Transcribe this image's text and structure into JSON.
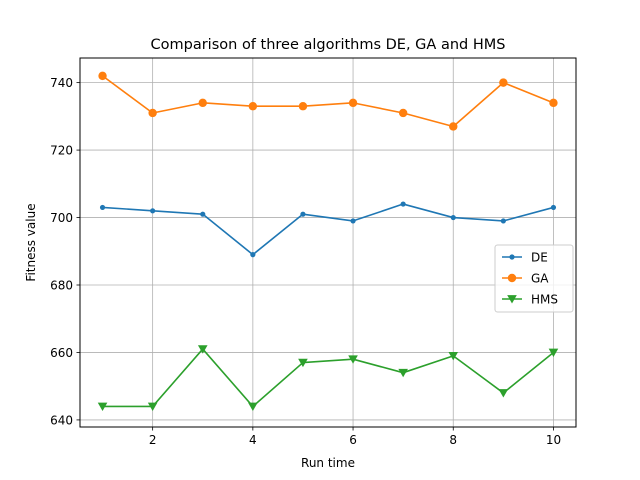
{
  "chart_data": {
    "type": "line",
    "title": "Comparison of three algorithms DE, GA and HMS",
    "xlabel": "Run time",
    "ylabel": "Fitness value",
    "x": [
      1,
      2,
      3,
      4,
      5,
      6,
      7,
      8,
      9,
      10
    ],
    "xlim": [
      0.55,
      10.45
    ],
    "ylim": [
      637.9,
      747.3
    ],
    "x_ticks": [
      2,
      4,
      6,
      8,
      10
    ],
    "y_ticks": [
      640,
      660,
      680,
      700,
      720,
      740
    ],
    "grid": true,
    "legend_position": "center-right",
    "series": [
      {
        "name": "DE",
        "color": "#1f77b4",
        "marker": "point",
        "values": [
          703,
          702,
          701,
          689,
          701,
          699,
          704,
          700,
          699,
          703
        ]
      },
      {
        "name": "GA",
        "color": "#ff7f0e",
        "marker": "circle",
        "values": [
          742,
          731,
          734,
          733,
          733,
          734,
          731,
          727,
          740,
          734
        ]
      },
      {
        "name": "HMS",
        "color": "#2ca02c",
        "marker": "triangle-down",
        "values": [
          644,
          644,
          661,
          644,
          657,
          658,
          654,
          659,
          648,
          660
        ]
      }
    ]
  }
}
